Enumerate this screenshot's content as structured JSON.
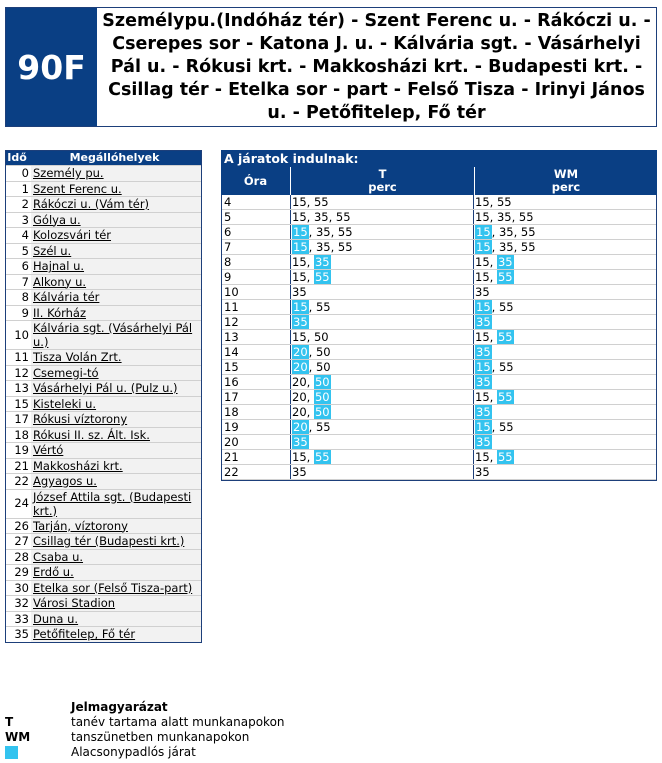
{
  "header": {
    "route_number": "90F",
    "title": "Személypu.(Indóház tér) - Szent Ferenc u. - Rákóczi u. - Cserepes sor - Katona J. u. - Kálvária sgt. - Vásárhelyi Pál u. - Rókusi krt. - Makkosházi krt. - Budapesti krt. - Csillag tér - Etelka sor - part - Felső Tisza - Irinyi János u. - Petőfitelep, Fő tér"
  },
  "stops": {
    "col_time": "Idő",
    "col_stops": "Megállóhelyek",
    "items": [
      {
        "t": "0",
        "name": "Személy pu."
      },
      {
        "t": "1",
        "name": "Szent Ferenc u."
      },
      {
        "t": "2",
        "name": "Rákóczi u. (Vám tér)"
      },
      {
        "t": "3",
        "name": "Gólya u."
      },
      {
        "t": "4",
        "name": "Kolozsvári tér"
      },
      {
        "t": "5",
        "name": "Szél u."
      },
      {
        "t": "6",
        "name": "Hajnal u."
      },
      {
        "t": "7",
        "name": "Alkony u."
      },
      {
        "t": "8",
        "name": "Kálvária tér"
      },
      {
        "t": "9",
        "name": "II. Kórház"
      },
      {
        "t": "10",
        "name": "Kálvária sgt. (Vásárhelyi Pál u.)"
      },
      {
        "t": "11",
        "name": "Tisza Volán Zrt."
      },
      {
        "t": "12",
        "name": "Csemegi-tó"
      },
      {
        "t": "13",
        "name": "Vásárhelyi Pál u. (Pulz u.)"
      },
      {
        "t": "15",
        "name": "Kisteleki u."
      },
      {
        "t": "17",
        "name": "Rókusi víztorony"
      },
      {
        "t": "18",
        "name": "Rókusi II. sz. Ált. Isk."
      },
      {
        "t": "19",
        "name": "Vértó"
      },
      {
        "t": "21",
        "name": "Makkosházi krt."
      },
      {
        "t": "22",
        "name": "Agyagos u."
      },
      {
        "t": "24",
        "name": "József Attila sgt. (Budapesti krt.)"
      },
      {
        "t": "26",
        "name": "Tarján, víztorony"
      },
      {
        "t": "27",
        "name": "Csillag tér (Budapesti krt.)"
      },
      {
        "t": "28",
        "name": "Csaba u."
      },
      {
        "t": "29",
        "name": "Erdő u."
      },
      {
        "t": "30",
        "name": "Etelka sor (Felső Tisza-part)"
      },
      {
        "t": "32",
        "name": "Városi Stadion"
      },
      {
        "t": "33",
        "name": "Duna u."
      },
      {
        "t": "35",
        "name": "Petőfitelep, Fő tér"
      }
    ]
  },
  "timetable": {
    "title": "A járatok indulnak:",
    "col_hour": "Óra",
    "col_T": "T",
    "col_W": "WM",
    "col_min": "perc",
    "rows": [
      {
        "h": "4",
        "T": [
          [
            "15",
            0
          ],
          [
            "55",
            0
          ]
        ],
        "W": [
          [
            "15",
            0
          ],
          [
            "55",
            0
          ]
        ]
      },
      {
        "h": "5",
        "T": [
          [
            "15",
            0
          ],
          [
            "35",
            0
          ],
          [
            "55",
            0
          ]
        ],
        "W": [
          [
            "15",
            0
          ],
          [
            "35",
            0
          ],
          [
            "55",
            0
          ]
        ]
      },
      {
        "h": "6",
        "T": [
          [
            "15",
            1
          ],
          [
            "35",
            0
          ],
          [
            "55",
            0
          ]
        ],
        "W": [
          [
            "15",
            1
          ],
          [
            "35",
            0
          ],
          [
            "55",
            0
          ]
        ]
      },
      {
        "h": "7",
        "T": [
          [
            "15",
            1
          ],
          [
            "35",
            0
          ],
          [
            "55",
            0
          ]
        ],
        "W": [
          [
            "15",
            1
          ],
          [
            "35",
            0
          ],
          [
            "55",
            0
          ]
        ]
      },
      {
        "h": "8",
        "T": [
          [
            "15",
            0
          ],
          [
            "35",
            1
          ]
        ],
        "W": [
          [
            "15",
            0
          ],
          [
            "35",
            1
          ]
        ]
      },
      {
        "h": "9",
        "T": [
          [
            "15",
            0
          ],
          [
            "55",
            1
          ]
        ],
        "W": [
          [
            "15",
            0
          ],
          [
            "55",
            1
          ]
        ]
      },
      {
        "h": "10",
        "T": [
          [
            "35",
            0
          ]
        ],
        "W": [
          [
            "35",
            0
          ]
        ]
      },
      {
        "h": "11",
        "T": [
          [
            "15",
            1
          ],
          [
            "55",
            0
          ]
        ],
        "W": [
          [
            "15",
            1
          ],
          [
            "55",
            0
          ]
        ]
      },
      {
        "h": "12",
        "T": [
          [
            "35",
            1
          ]
        ],
        "W": [
          [
            "35",
            1
          ]
        ]
      },
      {
        "h": "13",
        "T": [
          [
            "15",
            0
          ],
          [
            "50",
            0
          ]
        ],
        "W": [
          [
            "15",
            0
          ],
          [
            "55",
            1
          ]
        ]
      },
      {
        "h": "14",
        "T": [
          [
            "20",
            1
          ],
          [
            "50",
            0
          ]
        ],
        "W": [
          [
            "35",
            1
          ]
        ]
      },
      {
        "h": "15",
        "T": [
          [
            "20",
            1
          ],
          [
            "50",
            0
          ]
        ],
        "W": [
          [
            "15",
            1
          ],
          [
            "55",
            0
          ]
        ]
      },
      {
        "h": "16",
        "T": [
          [
            "20",
            0
          ],
          [
            "50",
            1
          ]
        ],
        "W": [
          [
            "35",
            1
          ]
        ]
      },
      {
        "h": "17",
        "T": [
          [
            "20",
            0
          ],
          [
            "50",
            1
          ]
        ],
        "W": [
          [
            "15",
            0
          ],
          [
            "55",
            1
          ]
        ]
      },
      {
        "h": "18",
        "T": [
          [
            "20",
            0
          ],
          [
            "50",
            1
          ]
        ],
        "W": [
          [
            "35",
            1
          ]
        ]
      },
      {
        "h": "19",
        "T": [
          [
            "20",
            1
          ],
          [
            "55",
            0
          ]
        ],
        "W": [
          [
            "15",
            1
          ],
          [
            "55",
            0
          ]
        ]
      },
      {
        "h": "20",
        "T": [
          [
            "35",
            1
          ]
        ],
        "W": [
          [
            "35",
            1
          ]
        ]
      },
      {
        "h": "21",
        "T": [
          [
            "15",
            0
          ],
          [
            "55",
            1
          ]
        ],
        "W": [
          [
            "15",
            0
          ],
          [
            "55",
            1
          ]
        ]
      },
      {
        "h": "22",
        "T": [
          [
            "35",
            0
          ]
        ],
        "W": [
          [
            "35",
            0
          ]
        ]
      }
    ]
  },
  "legend": {
    "title": "Jelmagyarázat",
    "items": [
      {
        "key": "T",
        "text": "tanév tartama alatt munkanapokon"
      },
      {
        "key": "WM",
        "text": "tanszünetben munkanapokon"
      },
      {
        "key": "",
        "text": "Alacsonypadlós járat",
        "swatch": "#33c3ef"
      }
    ]
  },
  "colors": {
    "header_blue": "#0a3f84",
    "lowfloor": "#33c3ef"
  }
}
